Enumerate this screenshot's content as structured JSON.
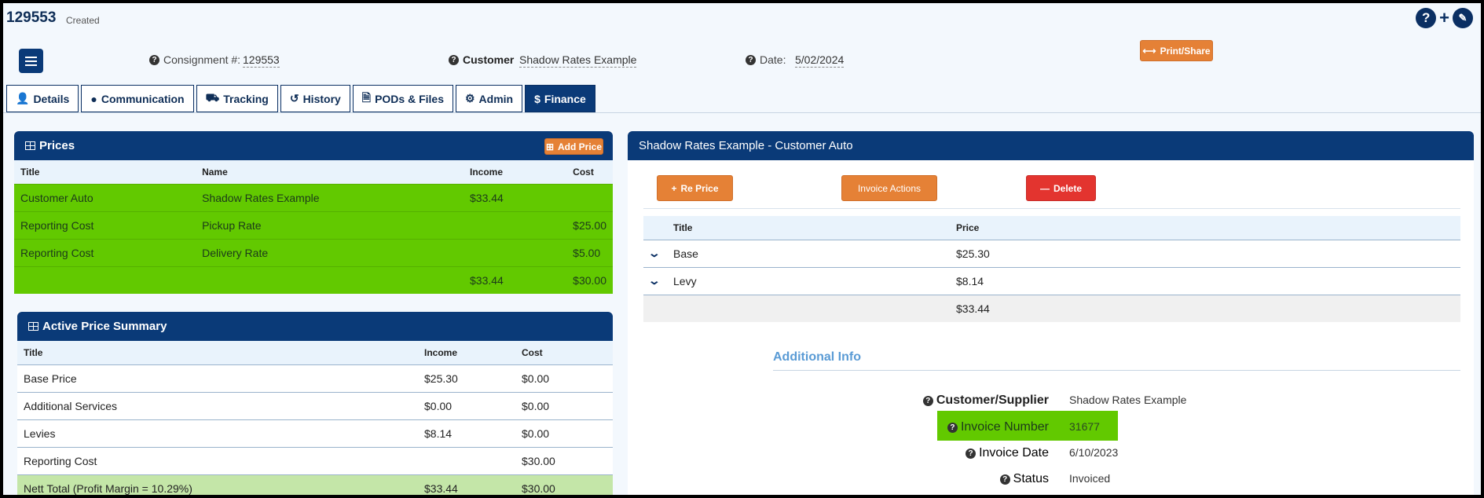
{
  "header": {
    "record_id": "129553",
    "record_status": "Created",
    "consignment_label": "Consignment #:",
    "consignment_value": "129553",
    "customer_label": "Customer",
    "customer_value": "Shadow Rates Example",
    "date_label": "Date:",
    "date_value": "5/02/2024",
    "print_share_label": "Print/Share"
  },
  "tabs": [
    {
      "label": "Details",
      "icon": "user-icon"
    },
    {
      "label": "Communication",
      "icon": "chat-icon"
    },
    {
      "label": "Tracking",
      "icon": "truck-icon"
    },
    {
      "label": "History",
      "icon": "history-icon"
    },
    {
      "label": "PODs & Files",
      "icon": "file-icon"
    },
    {
      "label": "Admin",
      "icon": "gear-icon"
    },
    {
      "label": "Finance",
      "icon": "dollar-icon",
      "active": true
    }
  ],
  "prices": {
    "title": "Prices",
    "add_label": "Add Price",
    "columns": [
      "Title",
      "Name",
      "Income",
      "Cost"
    ],
    "rows": [
      {
        "title": "Customer Auto",
        "name": "Shadow Rates Example",
        "income": "$33.44",
        "cost": ""
      },
      {
        "title": "Reporting Cost",
        "name": "Pickup Rate",
        "income": "",
        "cost": "$25.00"
      },
      {
        "title": "Reporting Cost",
        "name": "Delivery Rate",
        "income": "",
        "cost": "$5.00"
      }
    ],
    "total_income": "$33.44",
    "total_cost": "$30.00"
  },
  "summary": {
    "title": "Active Price Summary",
    "columns": [
      "Title",
      "Income",
      "Cost"
    ],
    "rows": [
      {
        "title": "Base Price",
        "income": "$25.30",
        "cost": "$0.00"
      },
      {
        "title": "Additional Services",
        "income": "$0.00",
        "cost": "$0.00"
      },
      {
        "title": "Levies",
        "income": "$8.14",
        "cost": "$0.00"
      },
      {
        "title": "Reporting Cost",
        "income": "",
        "cost": "$30.00"
      },
      {
        "title": "Nett Total (Profit Margin = 10.29%)",
        "income": "$33.44",
        "cost": "$30.00"
      }
    ]
  },
  "detail": {
    "title": "Shadow Rates Example - Customer Auto",
    "reprice_label": "Re Price",
    "invoice_actions_label": "Invoice Actions",
    "delete_label": "Delete",
    "columns": [
      "Title",
      "Price"
    ],
    "rows": [
      {
        "title": "Base",
        "price": "$25.30"
      },
      {
        "title": "Levy",
        "price": "$8.14"
      }
    ],
    "total": "$33.44",
    "additional_info_title": "Additional Info",
    "info": {
      "customer_supplier_label": "Customer/Supplier",
      "customer_supplier_value": "Shadow Rates Example",
      "invoice_number_label": "Invoice Number",
      "invoice_number_value": "31677",
      "invoice_date_label": "Invoice Date",
      "invoice_date_value": "6/10/2023",
      "status_label": "Status",
      "status_value": "Invoiced"
    }
  },
  "colors": {
    "navy": "#0a3a78",
    "orange": "#e58136",
    "red": "#e3342f",
    "green_highlight": "#62c900",
    "light_green": "#c4e6a8"
  }
}
